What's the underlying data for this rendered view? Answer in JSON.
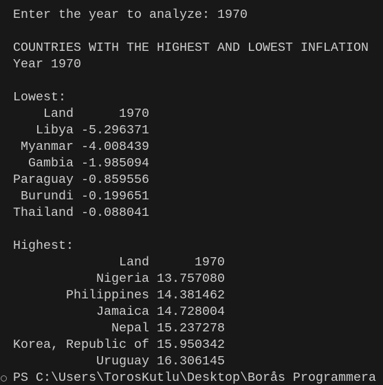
{
  "prompt_line": "Enter the year to analyze: 1970",
  "heading": "COUNTRIES WITH THE HIGHEST AND LOWEST INFLATION",
  "year_line": "Year 1970",
  "lowest": {
    "label": "Lowest:",
    "columns": [
      "Land",
      "1970"
    ],
    "rows": [
      [
        "Libya",
        "-5.296371"
      ],
      [
        "Myanmar",
        "-4.008439"
      ],
      [
        "Gambia",
        "-1.985094"
      ],
      [
        "Paraguay",
        "-0.859556"
      ],
      [
        "Burundi",
        "-0.199651"
      ],
      [
        "Thailand",
        "-0.088041"
      ]
    ]
  },
  "highest": {
    "label": "Highest:",
    "columns": [
      "Land",
      "1970"
    ],
    "rows": [
      [
        "Nigeria",
        "13.757080"
      ],
      [
        "Philippines",
        "14.381462"
      ],
      [
        "Jamaica",
        "14.728004"
      ],
      [
        "Nepal",
        "15.237278"
      ],
      [
        "Korea, Republic of",
        "15.950342"
      ],
      [
        "Uruguay",
        "16.306145"
      ]
    ]
  },
  "shell_prompt": "PS C:\\Users\\TorosKutlu\\Desktop\\Borås Programmera"
}
